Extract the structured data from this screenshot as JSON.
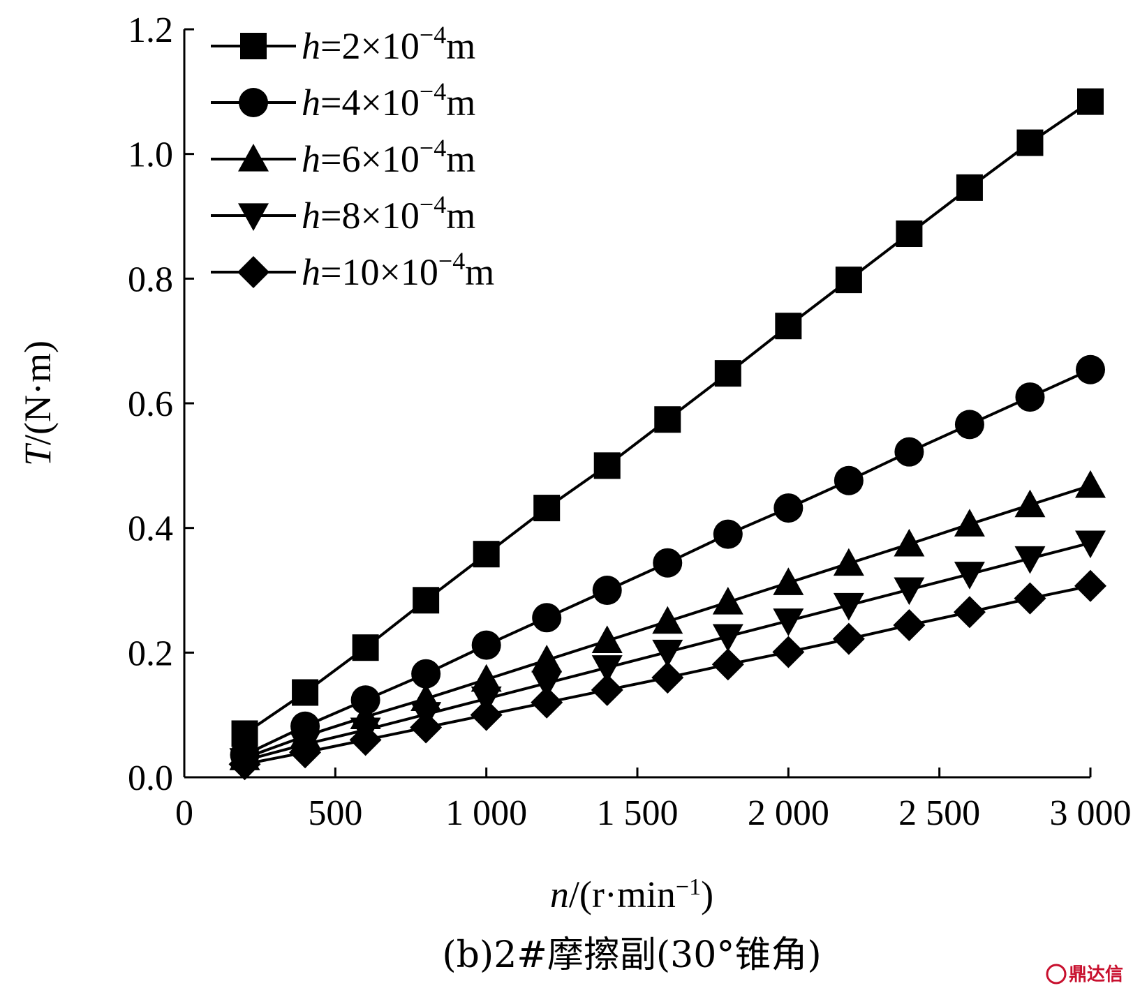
{
  "chart_data": {
    "type": "line",
    "x": [
      200,
      400,
      600,
      800,
      1000,
      1200,
      1400,
      1600,
      1800,
      2000,
      2200,
      2400,
      2600,
      2800,
      3000
    ],
    "series": [
      {
        "name": "h=2×10⁻⁴m",
        "marker": "square",
        "values": [
          0.07,
          0.136,
          0.208,
          0.284,
          0.358,
          0.432,
          0.5,
          0.574,
          0.648,
          0.724,
          0.798,
          0.872,
          0.946,
          1.018,
          1.084
        ]
      },
      {
        "name": "h=4×10⁻⁴m",
        "marker": "circle",
        "values": [
          0.036,
          0.082,
          0.124,
          0.166,
          0.212,
          0.256,
          0.3,
          0.344,
          0.39,
          0.432,
          0.476,
          0.522,
          0.566,
          0.61,
          0.654
        ]
      },
      {
        "name": "h=6×10⁻⁴m",
        "marker": "triangle-up",
        "values": [
          0.031,
          0.066,
          0.097,
          0.126,
          0.157,
          0.188,
          0.219,
          0.25,
          0.281,
          0.312,
          0.343,
          0.374,
          0.406,
          0.437,
          0.468
        ]
      },
      {
        "name": "h=8×10⁻⁴m",
        "marker": "triangle-down",
        "values": [
          0.027,
          0.053,
          0.076,
          0.101,
          0.126,
          0.151,
          0.176,
          0.201,
          0.226,
          0.251,
          0.276,
          0.301,
          0.326,
          0.351,
          0.376
        ]
      },
      {
        "name": "h=10×10⁻⁴m",
        "marker": "diamond",
        "values": [
          0.021,
          0.04,
          0.06,
          0.08,
          0.1,
          0.12,
          0.14,
          0.16,
          0.181,
          0.201,
          0.222,
          0.244,
          0.265,
          0.287,
          0.307
        ]
      }
    ],
    "x_ticks": [
      "0",
      "500",
      "1 000",
      "1 500",
      "2 000",
      "2 500",
      "3 000"
    ],
    "x_tick_values": [
      0,
      500,
      1000,
      1500,
      2000,
      2500,
      3000
    ],
    "y_ticks": [
      "0.0",
      "0.2",
      "0.4",
      "0.6",
      "0.8",
      "1.0",
      "1.2"
    ],
    "y_tick_values": [
      0,
      0.2,
      0.4,
      0.6,
      0.8,
      1.0,
      1.2
    ],
    "xlim": [
      0,
      3000
    ],
    "ylim": [
      0,
      1.2
    ],
    "xlabel": "n/(r·min⁻¹)",
    "ylabel": "T/(N·m)",
    "legend_position": "top-left",
    "grid": false
  },
  "caption": "(b)2#摩擦副(30°锥角)",
  "watermark": "鼎达信",
  "colors": {
    "line": "#000000",
    "marker": "#000000",
    "watermark": "#c8102e"
  }
}
